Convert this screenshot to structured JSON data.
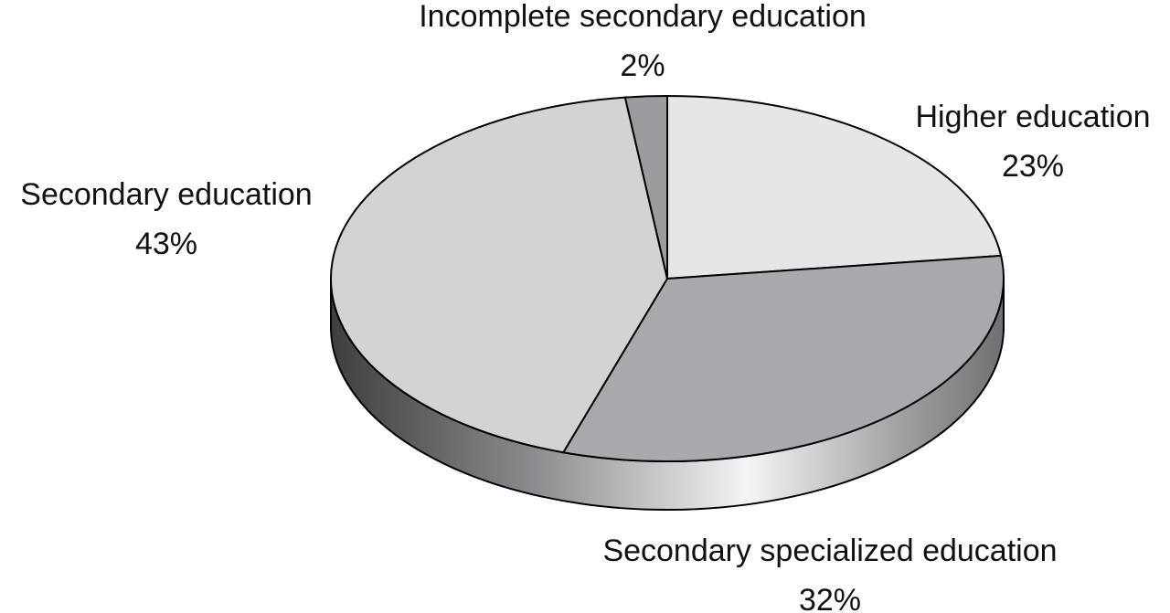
{
  "chart_data": {
    "type": "pie",
    "categories": [
      "Higher education",
      "Secondary specialized education",
      "Secondary education",
      "Incomplete secondary education"
    ],
    "values": [
      23,
      32,
      43,
      2
    ],
    "value_labels": [
      "23%",
      "32%",
      "43%",
      "2%"
    ],
    "colors": [
      "#e6e6e8",
      "#a8a9ad",
      "#d2d3d5",
      "#9b9c9f"
    ]
  }
}
